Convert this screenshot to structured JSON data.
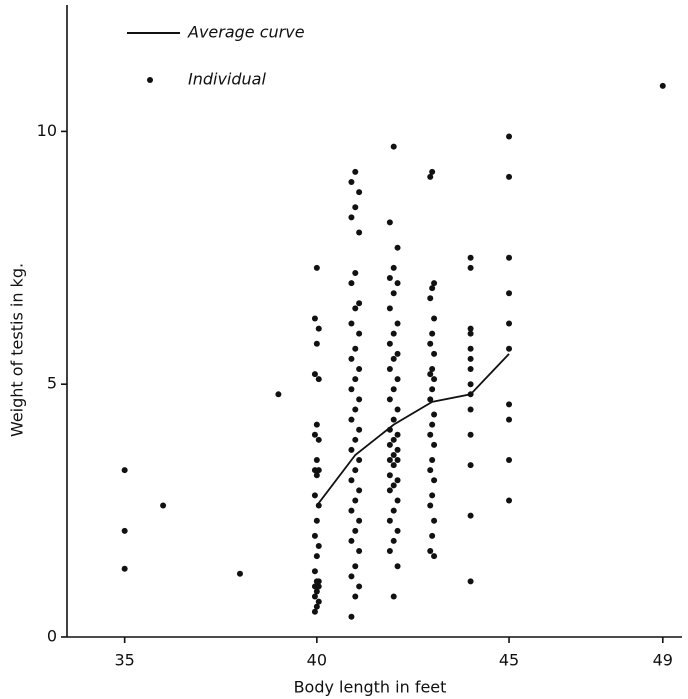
{
  "chart_data": {
    "type": "scatter",
    "xlabel": "Body length in feet",
    "ylabel": "Weight of testis in kg.",
    "xlim": [
      33.5,
      49.5
    ],
    "ylim": [
      0,
      12.5
    ],
    "xticks": [
      35,
      40,
      45,
      49
    ],
    "yticks": [
      0,
      5,
      10
    ],
    "legend": "upper left",
    "series": [
      {
        "name": "Average curve",
        "type": "line",
        "color": "#111111",
        "x": [
          40,
          41,
          42,
          43,
          44,
          45
        ],
        "values": [
          2.6,
          3.6,
          4.2,
          4.65,
          4.8,
          5.6
        ]
      },
      {
        "name": "Individual",
        "type": "scatter",
        "color": "#111111",
        "x": [
          35,
          35,
          35,
          36,
          38,
          39,
          40,
          39.95,
          40.05,
          40,
          39.95,
          40.05,
          40,
          39.95,
          40.05,
          40,
          39.95,
          40.05,
          40,
          39.95,
          40.05,
          40,
          39.95,
          40.05,
          40,
          39.95,
          40.05,
          40,
          39.95,
          40.05,
          40,
          39.95,
          40.05,
          40,
          39.95,
          41,
          40.9,
          41.1,
          41,
          40.9,
          41.1,
          41,
          40.9,
          41.1,
          41,
          40.9,
          41.1,
          41,
          40.9,
          41.1,
          41,
          40.9,
          41.1,
          41,
          40.9,
          41.1,
          41,
          40.9,
          41.1,
          41,
          40.9,
          41.1,
          41,
          40.9,
          41.1,
          41,
          40.9,
          41.1,
          41,
          40.9,
          41.1,
          41,
          40.9,
          42,
          41.9,
          42.1,
          42,
          41.9,
          42.1,
          42,
          41.9,
          42.1,
          42,
          41.9,
          42.1,
          42,
          41.9,
          42.1,
          42,
          41.9,
          42.1,
          42,
          41.9,
          42.1,
          42,
          41.9,
          42.1,
          42,
          41.9,
          42.1,
          42,
          41.9,
          42.1,
          42,
          41.9,
          42.1,
          42,
          41.9,
          42.1,
          42,
          41.9,
          42.1,
          42,
          43,
          42.95,
          43.05,
          43,
          42.95,
          43.05,
          43,
          42.95,
          43.05,
          43,
          42.95,
          43.05,
          43,
          42.95,
          43.05,
          43,
          42.95,
          43.05,
          43,
          42.95,
          43.05,
          43,
          42.95,
          43.05,
          43,
          42.95,
          43.05,
          44,
          44,
          44,
          44,
          44,
          44,
          44,
          44,
          44,
          44,
          44,
          44,
          44,
          44,
          45,
          45,
          45,
          45,
          45,
          45,
          45,
          45,
          45,
          45,
          49
        ],
        "values": [
          3.3,
          2.1,
          1.35,
          2.6,
          1.25,
          4.8,
          7.3,
          6.3,
          6.1,
          5.8,
          5.2,
          5.1,
          4.2,
          4.0,
          3.9,
          3.5,
          3.3,
          3.3,
          3.2,
          2.8,
          2.6,
          2.3,
          2.0,
          1.8,
          1.6,
          1.3,
          1.1,
          1.1,
          1.0,
          1.0,
          0.9,
          0.8,
          0.7,
          0.6,
          0.5,
          9.2,
          9.0,
          8.8,
          8.5,
          8.3,
          8.0,
          7.2,
          7.0,
          6.6,
          6.5,
          6.2,
          6.0,
          5.7,
          5.5,
          5.3,
          5.1,
          4.9,
          4.7,
          4.5,
          4.3,
          4.1,
          3.9,
          3.7,
          3.5,
          3.3,
          3.1,
          2.9,
          2.7,
          2.5,
          2.3,
          2.1,
          1.9,
          1.7,
          1.4,
          1.2,
          1.0,
          0.8,
          0.4,
          9.7,
          8.2,
          7.7,
          7.3,
          7.1,
          7.0,
          6.8,
          6.5,
          6.2,
          6.0,
          5.8,
          5.6,
          5.5,
          5.3,
          5.1,
          4.9,
          4.7,
          4.5,
          4.3,
          4.1,
          4.0,
          3.9,
          3.8,
          3.7,
          3.6,
          3.5,
          3.5,
          3.4,
          3.2,
          3.1,
          3.0,
          2.9,
          2.7,
          2.5,
          2.3,
          2.1,
          1.9,
          1.7,
          1.4,
          0.8,
          9.2,
          9.1,
          7.0,
          6.9,
          6.7,
          6.3,
          6.0,
          5.8,
          5.6,
          5.3,
          5.2,
          5.1,
          4.9,
          4.7,
          4.4,
          4.2,
          4.0,
          3.8,
          3.5,
          3.3,
          3.1,
          2.8,
          2.6,
          2.3,
          2.0,
          1.7,
          1.6,
          7.5,
          7.3,
          6.1,
          6.0,
          5.7,
          5.5,
          5.3,
          5.0,
          4.8,
          4.5,
          4.0,
          3.4,
          2.4,
          1.1,
          9.9,
          9.1,
          7.5,
          6.8,
          6.2,
          5.7,
          4.6,
          4.3,
          3.5,
          2.7,
          10.9
        ]
      }
    ]
  }
}
